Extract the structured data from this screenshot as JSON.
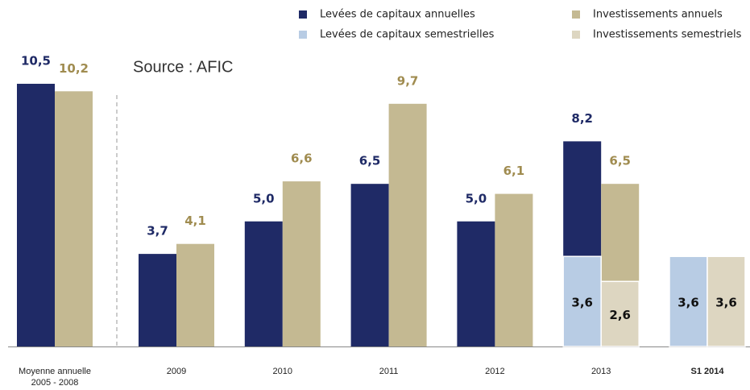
{
  "chart_data": {
    "type": "bar",
    "annotation": "Source : AFIC",
    "categories": [
      "Moyenne annuelle\n2005 - 2008",
      "2009",
      "2010",
      "2011",
      "2012",
      "2013",
      "S1 2014"
    ],
    "series": [
      {
        "name": "Levées de capitaux annuelles",
        "color": "#1f2a66",
        "label_color": "#1f2a66",
        "values": [
          10.5,
          3.7,
          5.0,
          6.5,
          5.0,
          8.2,
          null
        ],
        "value_labels": [
          "10,5",
          "3,7",
          "5,0",
          "6,5",
          "5,0",
          "8,2",
          null
        ]
      },
      {
        "name": "Investissements annuels",
        "color": "#c4b992",
        "label_color": "#a08c50",
        "values": [
          10.2,
          4.1,
          6.6,
          9.7,
          6.1,
          6.5,
          null
        ],
        "value_labels": [
          "10,2",
          "4,1",
          "6,6",
          "9,7",
          "6,1",
          "6,5",
          null
        ]
      },
      {
        "name": "Levées de capitaux semestrielles",
        "color": "#b8cce4",
        "label_color": "#111111",
        "values": [
          null,
          null,
          null,
          null,
          null,
          3.6,
          3.6
        ],
        "value_labels": [
          null,
          null,
          null,
          null,
          null,
          "3,6",
          "3,6"
        ]
      },
      {
        "name": "Investissements semestriels",
        "color": "#ddd6c1",
        "label_color": "#111111",
        "values": [
          null,
          null,
          null,
          null,
          null,
          2.6,
          3.6
        ],
        "value_labels": [
          null,
          null,
          null,
          null,
          null,
          "2,6",
          "3,6"
        ]
      }
    ]
  }
}
